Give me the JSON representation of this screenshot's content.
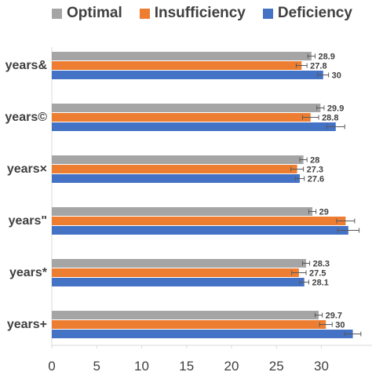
{
  "chart_data": {
    "type": "bar",
    "orientation": "horizontal",
    "categories": [
      "years&",
      "years©",
      "years×",
      "years\"",
      "years*",
      "years+"
    ],
    "series": [
      {
        "name": "Optimal",
        "color": "#a5a5a5",
        "values": [
          28.9,
          29.9,
          28,
          29,
          28.3,
          29.7
        ],
        "errors": [
          0.4,
          0.4,
          0.4,
          0.4,
          0.4,
          0.4
        ]
      },
      {
        "name": "Insufficiency",
        "color": "#ed7d31",
        "values": [
          27.8,
          28.8,
          27.3,
          32.7,
          27.5,
          30.5
        ],
        "errors": [
          0.6,
          0.9,
          0.7,
          1.0,
          0.8,
          0.7
        ]
      },
      {
        "name": "Deficiency",
        "color": "#4472c4",
        "values": [
          30.2,
          31.6,
          27.6,
          33.0,
          28.1,
          33.5
        ],
        "errors": [
          0.6,
          1.0,
          0.5,
          1.2,
          0.5,
          0.9
        ]
      }
    ],
    "data_labels": [
      [
        "28.9",
        "27.8",
        "30"
      ],
      [
        "29.9",
        "28.8",
        ""
      ],
      [
        "28",
        "27.3",
        "27.6"
      ],
      [
        "29",
        "",
        ""
      ],
      [
        "28.3",
        "27.5",
        "28.1"
      ],
      [
        "29.7",
        "30",
        ""
      ]
    ],
    "x_ticks": [
      "0",
      "5",
      "10",
      "15",
      "20",
      "25",
      "30"
    ],
    "xlim": [
      0,
      35
    ],
    "grid": false,
    "legend": "top"
  }
}
